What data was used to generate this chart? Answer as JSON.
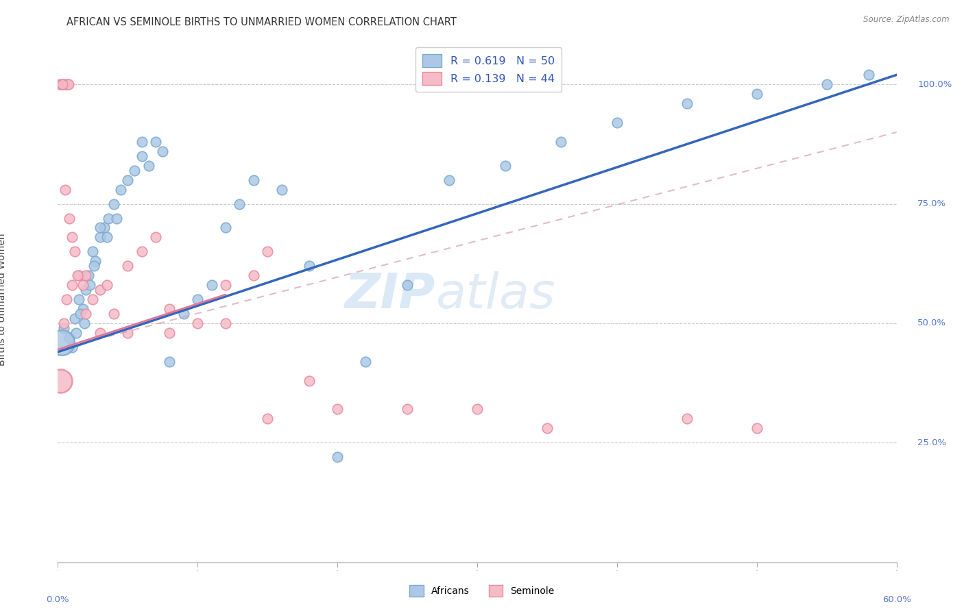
{
  "title": "AFRICAN VS SEMINOLE BIRTHS TO UNMARRIED WOMEN CORRELATION CHART",
  "source": "Source: ZipAtlas.com",
  "ylabel": "Births to Unmarried Women",
  "xlim": [
    0.0,
    60.0
  ],
  "ylim": [
    0.0,
    110.0
  ],
  "ytick_vals": [
    25.0,
    50.0,
    75.0,
    100.0
  ],
  "ytick_labels": [
    "25.0%",
    "50.0%",
    "75.0%",
    "100.0%"
  ],
  "xtick_vals": [
    0.0,
    10.0,
    20.0,
    30.0,
    40.0,
    50.0,
    60.0
  ],
  "xtick_end_labels": [
    "0.0%",
    "60.0%"
  ],
  "blue_scatter_color": "#adc8e6",
  "blue_edge_color": "#7aaad0",
  "pink_scatter_color": "#f5bcc8",
  "pink_edge_color": "#e88aa0",
  "blue_line_color": "#3366bb",
  "pink_line_color": "#dd7799",
  "pink_dash_color": "#d4a0ae",
  "legend1_label": "R = 0.619   N = 50",
  "legend2_label": "R = 0.139   N = 44",
  "legend_text_color": "#3355bb",
  "right_axis_color": "#5577cc",
  "watermark_zip_color": "#d5e5f5",
  "watermark_atlas_color": "#dce8f5",
  "title_color": "#333333",
  "source_color": "#888888",
  "grid_color": "#cccccc",
  "blue_line_x0": 0.0,
  "blue_line_y0": 44.0,
  "blue_line_x1": 60.0,
  "blue_line_y1": 102.0,
  "pink_solid_x0": 0.0,
  "pink_solid_y0": 44.5,
  "pink_solid_x1": 12.0,
  "pink_solid_y1": 56.0,
  "pink_dash_x0": 0.0,
  "pink_dash_y0": 44.5,
  "pink_dash_x1": 60.0,
  "pink_dash_y1": 90.0,
  "africans_x": [
    0.4,
    0.8,
    1.2,
    1.5,
    1.8,
    2.0,
    2.2,
    2.5,
    2.7,
    3.0,
    3.3,
    3.6,
    4.0,
    4.5,
    5.0,
    5.5,
    6.0,
    6.5,
    7.0,
    7.5,
    8.0,
    9.0,
    10.0,
    11.0,
    12.0,
    13.0,
    14.0,
    16.0,
    18.0,
    20.0,
    22.0,
    25.0,
    28.0,
    32.0,
    36.0,
    40.0,
    45.0,
    50.0,
    55.0,
    58.0,
    1.0,
    1.3,
    1.6,
    1.9,
    2.3,
    2.6,
    3.0,
    3.5,
    4.2,
    6.0
  ],
  "africans_y": [
    49.0,
    47.0,
    51.0,
    55.0,
    53.0,
    57.0,
    60.0,
    65.0,
    63.0,
    68.0,
    70.0,
    72.0,
    75.0,
    78.0,
    80.0,
    82.0,
    85.0,
    83.0,
    88.0,
    86.0,
    42.0,
    52.0,
    55.0,
    58.0,
    70.0,
    75.0,
    80.0,
    78.0,
    62.0,
    22.0,
    42.0,
    58.0,
    80.0,
    83.0,
    88.0,
    92.0,
    96.0,
    98.0,
    100.0,
    102.0,
    45.0,
    48.0,
    52.0,
    50.0,
    58.0,
    62.0,
    70.0,
    68.0,
    72.0,
    88.0
  ],
  "africans_large_x": [
    0.3
  ],
  "africans_large_y": [
    46.0
  ],
  "africans_large_size": 700,
  "seminole_x": [
    0.15,
    0.25,
    0.35,
    0.45,
    0.55,
    0.65,
    0.75,
    0.35,
    0.5,
    0.8,
    1.0,
    1.2,
    1.5,
    1.8,
    2.0,
    2.5,
    3.0,
    3.5,
    4.0,
    5.0,
    6.0,
    7.0,
    8.0,
    10.0,
    12.0,
    14.0,
    15.0,
    0.4,
    0.6,
    1.0,
    1.4,
    2.0,
    3.0,
    5.0,
    8.0,
    12.0,
    15.0,
    18.0,
    20.0,
    25.0,
    30.0,
    35.0,
    45.0,
    50.0
  ],
  "seminole_y": [
    100.0,
    100.0,
    100.0,
    100.0,
    100.0,
    100.0,
    100.0,
    100.0,
    78.0,
    72.0,
    68.0,
    65.0,
    60.0,
    58.0,
    60.0,
    55.0,
    57.0,
    58.0,
    52.0,
    62.0,
    65.0,
    68.0,
    53.0,
    50.0,
    58.0,
    60.0,
    65.0,
    50.0,
    55.0,
    58.0,
    60.0,
    52.0,
    48.0,
    48.0,
    48.0,
    50.0,
    30.0,
    38.0,
    32.0,
    32.0,
    32.0,
    28.0,
    30.0,
    28.0
  ],
  "seminole_large_x": [
    0.2
  ],
  "seminole_large_y": [
    38.0
  ],
  "seminole_large_size": 600,
  "scatter_size": 110,
  "scatter_linewidth": 1.2
}
